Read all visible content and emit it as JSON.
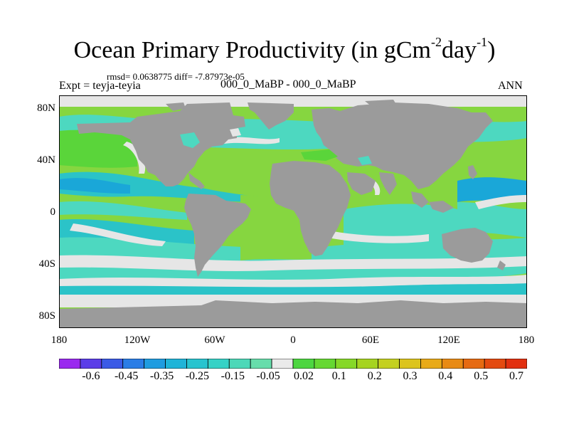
{
  "title": {
    "text": "Ocean Primary Productivity (in gCm",
    "exp1": "-2",
    "mid": "day",
    "exp2": "-1",
    "end": ")"
  },
  "stats": "rmsd= 0.0638775 diff= -7.87973e-05",
  "expt": "Expt = teyja-teyia",
  "case": "000_0_MaBP - 000_0_MaBP",
  "season": "ANN",
  "axes": {
    "y_labels": [
      "80N",
      "40N",
      "0",
      "40S",
      "80S"
    ],
    "x_labels": [
      "180",
      "120W",
      "60W",
      "0",
      "60E",
      "120E",
      "180"
    ]
  },
  "colors": {
    "land": "#9b9b9b",
    "ocean_near_zero": "#e6e6e6",
    "green": "#5ad53a",
    "light_green": "#86d640",
    "cyan": "#4dd8c0",
    "teal": "#2bc3c8",
    "blue": "#1aa7d8"
  },
  "colorbar": {
    "colors": [
      "#9a29ef",
      "#5b3de8",
      "#3b5ae6",
      "#2a7de6",
      "#1f9ce0",
      "#1fb4d8",
      "#28c4cf",
      "#36d2c6",
      "#4dd8b8",
      "#67ddab",
      "#eaeaea",
      "#4dd640",
      "#66d832",
      "#86d828",
      "#a6d420",
      "#c4d020",
      "#dcc41c",
      "#e8aa18",
      "#e88a14",
      "#e66a12",
      "#e44a10",
      "#e23010"
    ],
    "labels": [
      "-0.6",
      "-0.45",
      "-0.35",
      "-0.25",
      "-0.15",
      "-0.05",
      "0.02",
      "0.1",
      "0.2",
      "0.3",
      "0.4",
      "0.5",
      "0.7"
    ]
  }
}
